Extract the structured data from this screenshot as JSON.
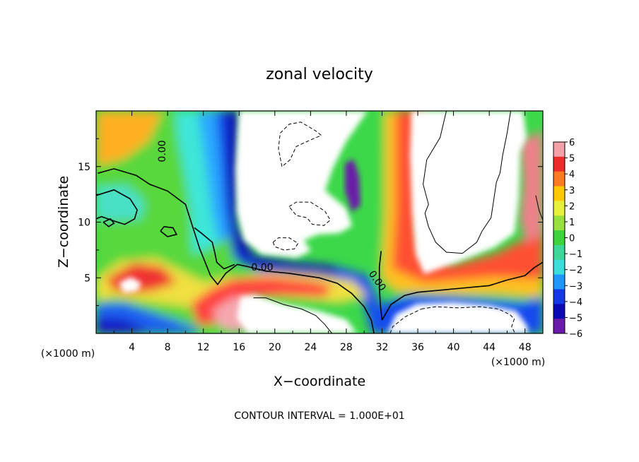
{
  "chart_data": {
    "type": "heatmap",
    "title": "zonal velocity",
    "xlabel": "X−coordinate",
    "ylabel": "Z−coordinate",
    "x_units_left": "(×1000 m)",
    "x_units_right": "(×1000 m)",
    "footer": "CONTOUR INTERVAL = 1.000E+01",
    "xlim": [
      0,
      50
    ],
    "ylim": [
      0,
      20
    ],
    "x_ticks": [
      4,
      8,
      12,
      16,
      20,
      24,
      28,
      32,
      36,
      40,
      44,
      48
    ],
    "y_ticks": [
      5,
      10,
      15
    ],
    "colorbar": {
      "ticks": [
        "6",
        "5",
        "4",
        "3",
        "2",
        "1",
        "0",
        "−1",
        "−2",
        "−3",
        "−4",
        "−5",
        "−6"
      ],
      "range": [
        -6,
        6
      ],
      "colors": [
        "#f4a0a8",
        "#ee2a2a",
        "#ff7a20",
        "#ffc800",
        "#e8f03c",
        "#98e03c",
        "#3ed23c",
        "#3cd89a",
        "#3cdedc",
        "#1e96ff",
        "#1438e6",
        "#0a0ab4",
        "#6a1aa8"
      ]
    },
    "contour_labels": [
      "0.00",
      "0.00",
      "0.00"
    ],
    "contours": {
      "solid": [
        [
          [
            0.2,
            14.4
          ],
          [
            2,
            14.8
          ],
          [
            4.5,
            14.2
          ],
          [
            6,
            13.4
          ],
          [
            8,
            12.8
          ],
          [
            10,
            11.6
          ],
          [
            10.8,
            9.6
          ],
          [
            11.6,
            7.6
          ],
          [
            12,
            6.8
          ],
          [
            12.8,
            5.2
          ],
          [
            13.6,
            4.4
          ],
          [
            14.5,
            5.4
          ],
          [
            15.8,
            6.2
          ],
          [
            17,
            6
          ],
          [
            19,
            5.6
          ],
          [
            21.6,
            5.4
          ],
          [
            25,
            5
          ],
          [
            27,
            4.5
          ],
          [
            28.6,
            3.6
          ],
          [
            30,
            2.4
          ],
          [
            30.8,
            1.2
          ],
          [
            31.1,
            0
          ]
        ],
        [
          [
            0,
            12.4
          ],
          [
            2,
            12.9
          ],
          [
            3.8,
            12.1
          ],
          [
            4.6,
            11.1
          ],
          [
            4.3,
            10.3
          ],
          [
            3.2,
            9.8
          ],
          [
            2,
            10.1
          ],
          [
            0.6,
            10.5
          ],
          [
            0,
            10.3
          ]
        ],
        [
          [
            11,
            9.5
          ],
          [
            11.8,
            9
          ],
          [
            13,
            8.2
          ],
          [
            13.3,
            7.2
          ],
          [
            13.5,
            6.4
          ],
          [
            14.3,
            5.8
          ],
          [
            15.5,
            6.2
          ]
        ],
        [
          [
            32,
            1.2
          ],
          [
            33,
            2.6
          ],
          [
            34.5,
            3.4
          ],
          [
            36,
            3.7
          ],
          [
            40,
            4
          ],
          [
            44,
            4.3
          ],
          [
            46,
            4.8
          ],
          [
            48,
            5.2
          ],
          [
            49,
            5.9
          ],
          [
            50,
            6.4
          ]
        ],
        [
          [
            32,
            1.2
          ],
          [
            31.8,
            2.6
          ],
          [
            31.7,
            4.2
          ],
          [
            31.7,
            6
          ],
          [
            31.9,
            7.4
          ]
        ],
        [
          [
            7.2,
            9.2
          ],
          [
            8,
            8.7
          ],
          [
            9,
            8.9
          ],
          [
            8.6,
            9.5
          ],
          [
            7.6,
            9.6
          ],
          [
            7.2,
            9.2
          ]
        ],
        [
          [
            0.8,
            10
          ],
          [
            1.4,
            9.6
          ],
          [
            2,
            9.9
          ],
          [
            1.6,
            10.3
          ],
          [
            0.8,
            10
          ]
        ]
      ],
      "thin": [
        [
          [
            39.2,
            20
          ],
          [
            38.5,
            17.6
          ],
          [
            37,
            15.6
          ],
          [
            36.6,
            13.4
          ],
          [
            37.2,
            11.6
          ],
          [
            36.8,
            10.8
          ],
          [
            37.2,
            9.6
          ],
          [
            38,
            8.2
          ],
          [
            39.2,
            7.3
          ],
          [
            41,
            7.2
          ],
          [
            42.6,
            8.2
          ],
          [
            43.2,
            9.2
          ],
          [
            44.2,
            10.4
          ],
          [
            44.5,
            12
          ],
          [
            44.8,
            13.6
          ],
          [
            45.2,
            14.4
          ],
          [
            45.5,
            16
          ],
          [
            46,
            18
          ],
          [
            46.4,
            20
          ]
        ],
        [
          [
            17.6,
            3.2
          ],
          [
            19,
            3.2
          ],
          [
            21,
            2.6
          ],
          [
            23,
            2.2
          ],
          [
            24.6,
            1.6
          ],
          [
            25.6,
            0.8
          ],
          [
            26.4,
            0
          ]
        ],
        [
          [
            49.2,
            12.4
          ],
          [
            49.6,
            11
          ],
          [
            50,
            10.2
          ]
        ]
      ],
      "dashed": [
        [
          [
            20.8,
            15
          ],
          [
            20.4,
            16.6
          ],
          [
            20.6,
            18
          ],
          [
            21.6,
            18.8
          ],
          [
            22.9,
            19
          ],
          [
            24.6,
            18.2
          ],
          [
            25.2,
            17.8
          ],
          [
            24,
            17.4
          ],
          [
            22.4,
            16.8
          ],
          [
            21.7,
            15.6
          ],
          [
            20.8,
            15
          ]
        ],
        [
          [
            21.6,
            11.4
          ],
          [
            22.4,
            11.8
          ],
          [
            24,
            11.8
          ],
          [
            25.6,
            11
          ],
          [
            26.2,
            10.2
          ],
          [
            25.5,
            9.7
          ],
          [
            24.2,
            9.8
          ],
          [
            23.6,
            10.4
          ],
          [
            22.4,
            10.6
          ],
          [
            21.6,
            11.4
          ]
        ],
        [
          [
            19.8,
            8.2
          ],
          [
            20.4,
            8.6
          ],
          [
            21.6,
            8.6
          ],
          [
            22.6,
            8.1
          ],
          [
            22.2,
            7.6
          ],
          [
            21,
            7.5
          ],
          [
            20,
            7.8
          ],
          [
            19.8,
            8.2
          ]
        ],
        [
          [
            36.4,
            2.2
          ],
          [
            38,
            2.4
          ],
          [
            40.5,
            2.3
          ],
          [
            43,
            2.4
          ],
          [
            45,
            2.2
          ],
          [
            46.3,
            1.7
          ],
          [
            46.8,
            1.3
          ],
          [
            46.5,
            0.6
          ],
          [
            46.9,
            0
          ]
        ],
        [
          [
            32.9,
            0
          ],
          [
            33.2,
            0.6
          ],
          [
            34.6,
            1.5
          ],
          [
            36.4,
            2.2
          ]
        ]
      ]
    }
  }
}
